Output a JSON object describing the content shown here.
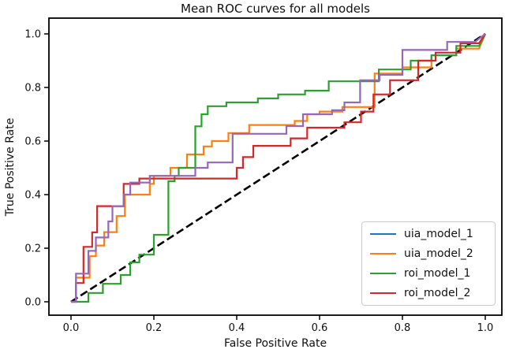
{
  "figure": {
    "title": "Mean ROC curves for all models",
    "x_axis_label": "False Positive Rate",
    "y_axis_label": "True Positive Rate"
  },
  "chart_data": {
    "type": "line",
    "subtype": "roc-step-curves",
    "title": "Mean ROC curves for all models",
    "xlabel": "False Positive Rate",
    "ylabel": "True Positive Rate",
    "xlim": [
      -0.05,
      1.05
    ],
    "ylim": [
      -0.06,
      1.06
    ],
    "x_ticks": [
      "0.0",
      "0.2",
      "0.4",
      "0.6",
      "0.8",
      "1.0"
    ],
    "y_ticks": [
      "0.0",
      "0.2",
      "0.4",
      "0.6",
      "0.8",
      "1.0"
    ],
    "x_tick_values": [
      0.0,
      0.2,
      0.4,
      0.6,
      0.8,
      1.0
    ],
    "y_tick_values": [
      0.0,
      0.2,
      0.4,
      0.6,
      0.8,
      1.0
    ],
    "grid": false,
    "legend_position": "lower right",
    "reference_line": {
      "name": "chance-diagonal",
      "style": "dashed",
      "color": "#000000",
      "points": [
        [
          0,
          0
        ],
        [
          1,
          1
        ]
      ]
    },
    "series": [
      {
        "name": "uia_model_2",
        "line_color": "#ff7f0e",
        "legend_color": "#ff7f0e",
        "points": [
          [
            0,
            0
          ],
          [
            0.012,
            0
          ],
          [
            0.012,
            0.09
          ],
          [
            0.045,
            0.09
          ],
          [
            0.045,
            0.17
          ],
          [
            0.06,
            0.17
          ],
          [
            0.06,
            0.21
          ],
          [
            0.08,
            0.21
          ],
          [
            0.08,
            0.26
          ],
          [
            0.11,
            0.26
          ],
          [
            0.11,
            0.32
          ],
          [
            0.13,
            0.32
          ],
          [
            0.13,
            0.4
          ],
          [
            0.19,
            0.4
          ],
          [
            0.19,
            0.44
          ],
          [
            0.2,
            0.44
          ],
          [
            0.2,
            0.47
          ],
          [
            0.24,
            0.47
          ],
          [
            0.24,
            0.5
          ],
          [
            0.28,
            0.5
          ],
          [
            0.28,
            0.55
          ],
          [
            0.32,
            0.55
          ],
          [
            0.32,
            0.58
          ],
          [
            0.34,
            0.58
          ],
          [
            0.34,
            0.6
          ],
          [
            0.38,
            0.6
          ],
          [
            0.38,
            0.63
          ],
          [
            0.43,
            0.63
          ],
          [
            0.43,
            0.66
          ],
          [
            0.54,
            0.66
          ],
          [
            0.54,
            0.675
          ],
          [
            0.57,
            0.675
          ],
          [
            0.57,
            0.7
          ],
          [
            0.6,
            0.7
          ],
          [
            0.6,
            0.71
          ],
          [
            0.655,
            0.71
          ],
          [
            0.655,
            0.727
          ],
          [
            0.733,
            0.727
          ],
          [
            0.733,
            0.852
          ],
          [
            0.8,
            0.852
          ],
          [
            0.8,
            0.875
          ],
          [
            0.87,
            0.875
          ],
          [
            0.87,
            0.92
          ],
          [
            0.93,
            0.92
          ],
          [
            0.93,
            0.945
          ],
          [
            0.985,
            0.945
          ],
          [
            1,
            1
          ]
        ]
      },
      {
        "name": "roi_model_1",
        "line_color": "#2ca02c",
        "legend_color": "#2ca02c",
        "points": [
          [
            0,
            0
          ],
          [
            0.042,
            0
          ],
          [
            0.042,
            0.033
          ],
          [
            0.077,
            0.033
          ],
          [
            0.077,
            0.067
          ],
          [
            0.12,
            0.067
          ],
          [
            0.12,
            0.1
          ],
          [
            0.143,
            0.1
          ],
          [
            0.143,
            0.147
          ],
          [
            0.165,
            0.147
          ],
          [
            0.165,
            0.176
          ],
          [
            0.2,
            0.176
          ],
          [
            0.2,
            0.25
          ],
          [
            0.235,
            0.25
          ],
          [
            0.235,
            0.45
          ],
          [
            0.25,
            0.45
          ],
          [
            0.25,
            0.47
          ],
          [
            0.26,
            0.47
          ],
          [
            0.26,
            0.5
          ],
          [
            0.3,
            0.5
          ],
          [
            0.3,
            0.655
          ],
          [
            0.315,
            0.655
          ],
          [
            0.315,
            0.7
          ],
          [
            0.33,
            0.7
          ],
          [
            0.33,
            0.73
          ],
          [
            0.375,
            0.73
          ],
          [
            0.375,
            0.744
          ],
          [
            0.451,
            0.744
          ],
          [
            0.451,
            0.759
          ],
          [
            0.5,
            0.759
          ],
          [
            0.5,
            0.774
          ],
          [
            0.565,
            0.774
          ],
          [
            0.565,
            0.788
          ],
          [
            0.622,
            0.788
          ],
          [
            0.622,
            0.823
          ],
          [
            0.743,
            0.823
          ],
          [
            0.743,
            0.867
          ],
          [
            0.82,
            0.867
          ],
          [
            0.82,
            0.9
          ],
          [
            0.87,
            0.9
          ],
          [
            0.87,
            0.92
          ],
          [
            0.93,
            0.92
          ],
          [
            0.93,
            0.955
          ],
          [
            0.985,
            0.955
          ],
          [
            1,
            1
          ]
        ]
      },
      {
        "name": "roi_model_2",
        "line_color": "#d62728",
        "legend_color": "#d62728",
        "points": [
          [
            0,
            0
          ],
          [
            0.012,
            0
          ],
          [
            0.012,
            0.07
          ],
          [
            0.03,
            0.07
          ],
          [
            0.03,
            0.205
          ],
          [
            0.051,
            0.205
          ],
          [
            0.051,
            0.259
          ],
          [
            0.063,
            0.259
          ],
          [
            0.063,
            0.357
          ],
          [
            0.127,
            0.357
          ],
          [
            0.127,
            0.44
          ],
          [
            0.165,
            0.44
          ],
          [
            0.165,
            0.46
          ],
          [
            0.4,
            0.46
          ],
          [
            0.4,
            0.5
          ],
          [
            0.415,
            0.5
          ],
          [
            0.415,
            0.54
          ],
          [
            0.44,
            0.54
          ],
          [
            0.44,
            0.582
          ],
          [
            0.53,
            0.582
          ],
          [
            0.53,
            0.61
          ],
          [
            0.57,
            0.61
          ],
          [
            0.57,
            0.65
          ],
          [
            0.66,
            0.65
          ],
          [
            0.66,
            0.67
          ],
          [
            0.7,
            0.67
          ],
          [
            0.7,
            0.71
          ],
          [
            0.73,
            0.71
          ],
          [
            0.73,
            0.774
          ],
          [
            0.77,
            0.774
          ],
          [
            0.77,
            0.827
          ],
          [
            0.838,
            0.827
          ],
          [
            0.838,
            0.9
          ],
          [
            0.88,
            0.9
          ],
          [
            0.88,
            0.93
          ],
          [
            0.94,
            0.93
          ],
          [
            0.94,
            0.965
          ],
          [
            0.985,
            0.965
          ],
          [
            1,
            1
          ]
        ]
      },
      {
        "name": "uia_model_1",
        "line_color": "#9467bd",
        "legend_color": "#1f77b4",
        "points": [
          [
            0,
            0
          ],
          [
            0.012,
            0
          ],
          [
            0.012,
            0.105
          ],
          [
            0.042,
            0.105
          ],
          [
            0.042,
            0.19
          ],
          [
            0.06,
            0.19
          ],
          [
            0.06,
            0.24
          ],
          [
            0.09,
            0.24
          ],
          [
            0.09,
            0.3
          ],
          [
            0.1,
            0.3
          ],
          [
            0.1,
            0.357
          ],
          [
            0.127,
            0.357
          ],
          [
            0.127,
            0.4
          ],
          [
            0.143,
            0.4
          ],
          [
            0.143,
            0.445
          ],
          [
            0.19,
            0.445
          ],
          [
            0.19,
            0.47
          ],
          [
            0.3,
            0.47
          ],
          [
            0.3,
            0.5
          ],
          [
            0.33,
            0.5
          ],
          [
            0.33,
            0.52
          ],
          [
            0.39,
            0.52
          ],
          [
            0.39,
            0.627
          ],
          [
            0.52,
            0.627
          ],
          [
            0.52,
            0.656
          ],
          [
            0.56,
            0.656
          ],
          [
            0.56,
            0.7
          ],
          [
            0.63,
            0.7
          ],
          [
            0.63,
            0.715
          ],
          [
            0.66,
            0.715
          ],
          [
            0.66,
            0.744
          ],
          [
            0.698,
            0.744
          ],
          [
            0.698,
            0.827
          ],
          [
            0.745,
            0.827
          ],
          [
            0.745,
            0.847
          ],
          [
            0.8,
            0.847
          ],
          [
            0.8,
            0.94
          ],
          [
            0.908,
            0.94
          ],
          [
            0.908,
            0.97
          ],
          [
            0.975,
            0.97
          ],
          [
            1,
            1
          ]
        ]
      }
    ]
  },
  "legend": {
    "entries": [
      {
        "label": "uia_model_1",
        "color": "#1f77b4"
      },
      {
        "label": "uia_model_2",
        "color": "#ff7f0e"
      },
      {
        "label": "roi_model_1",
        "color": "#2ca02c"
      },
      {
        "label": "roi_model_2",
        "color": "#d62728"
      }
    ]
  }
}
